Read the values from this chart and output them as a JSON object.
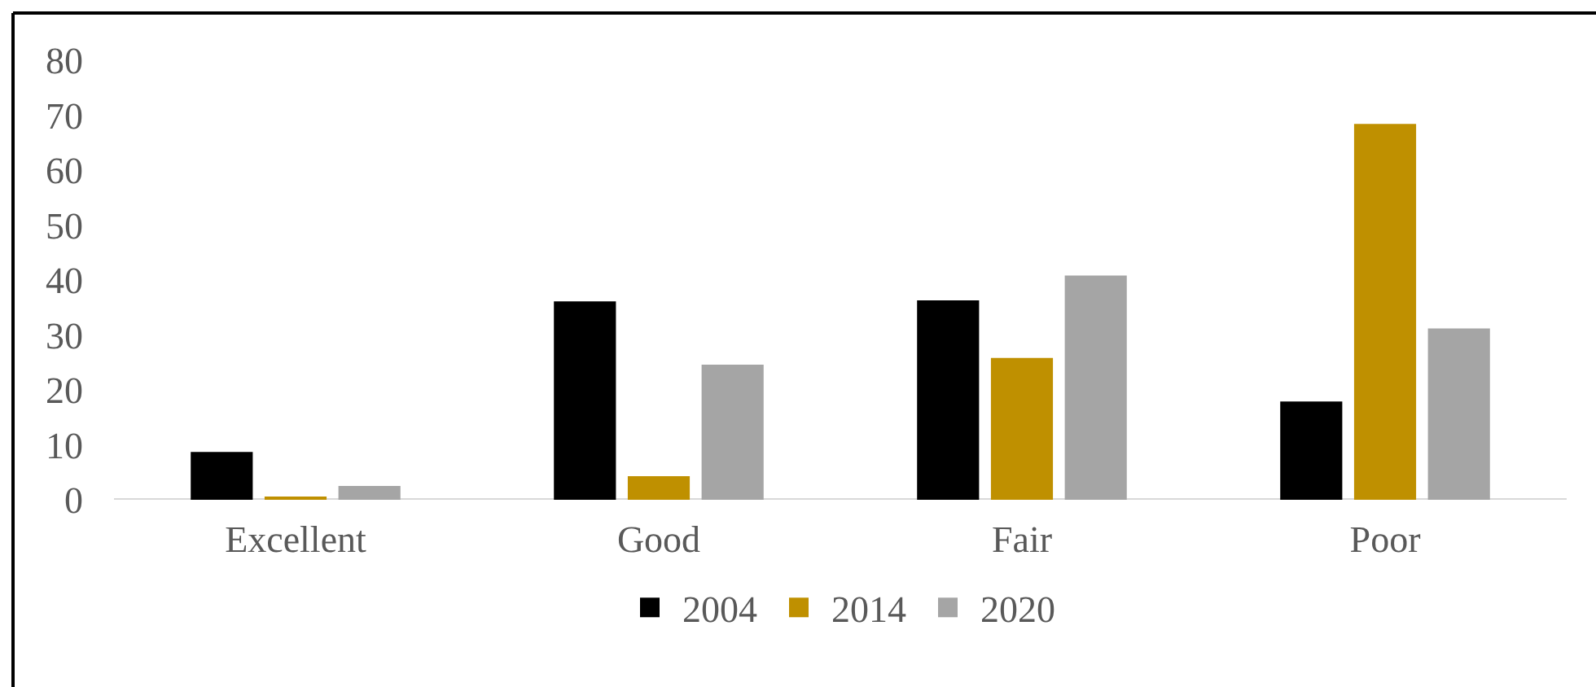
{
  "chart_data": {
    "type": "bar",
    "categories": [
      "Excellent",
      "Good",
      "Fair",
      "Poor"
    ],
    "series": [
      {
        "name": "2004",
        "color": "#000000",
        "values": [
          8.7,
          36.1,
          36.3,
          17.9
        ]
      },
      {
        "name": "2014",
        "color": "#bf9000",
        "values": [
          0.5,
          4.3,
          25.8,
          68.4
        ]
      },
      {
        "name": "2020",
        "color": "#a5a5a5",
        "values": [
          2.5,
          24.6,
          40.8,
          31.2
        ]
      }
    ],
    "ylim": [
      0,
      80
    ],
    "yticks": [
      0,
      10,
      20,
      30,
      40,
      50,
      60,
      70,
      80
    ],
    "grid": false,
    "legend": "bottom"
  }
}
